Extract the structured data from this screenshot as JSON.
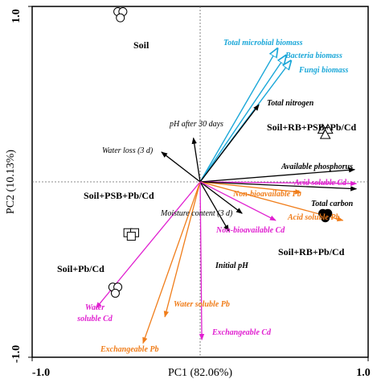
{
  "chart_data": {
    "type": "scatter",
    "subtype": "PCA biplot",
    "xlabel": "PC1 (82.06%)",
    "ylabel": "PC2 (10.13%)",
    "xlim": [
      -1.0,
      1.0
    ],
    "ylim": [
      -1.0,
      1.0
    ],
    "x_ticks": [
      "-1.0",
      "1.0"
    ],
    "y_ticks": [
      "1.0",
      "-1.0"
    ],
    "reference_lines": "dotted lines at x=0 and y=0",
    "vectors": [
      {
        "name": "Total microbial biomass",
        "x": 0.46,
        "y": 0.76,
        "color": "#1aa7d8",
        "style": "open-arrow"
      },
      {
        "name": "Bacteria biomass",
        "x": 0.51,
        "y": 0.72,
        "color": "#1aa7d8",
        "style": "open-arrow"
      },
      {
        "name": "Fungi biomass",
        "x": 0.54,
        "y": 0.69,
        "color": "#1aa7d8",
        "style": "open-arrow"
      },
      {
        "name": "Total nitrogen",
        "x": 0.35,
        "y": 0.44,
        "color": "#000000",
        "style": "arrow"
      },
      {
        "name": "pH after 30 days",
        "x": -0.04,
        "y": 0.25,
        "color": "#000000",
        "style": "arrow"
      },
      {
        "name": "Water loss (3 d)",
        "x": -0.23,
        "y": 0.17,
        "color": "#000000",
        "style": "arrow"
      },
      {
        "name": "Available phosphorus",
        "x": 0.92,
        "y": 0.07,
        "color": "#000000",
        "style": "arrow"
      },
      {
        "name": "Acid soluble Cd",
        "x": 0.93,
        "y": -0.01,
        "color": "#e020d0",
        "style": "arrow"
      },
      {
        "name": "Non-bioavailable Pb",
        "x": 0.6,
        "y": -0.06,
        "color": "#f07d1a",
        "style": "arrow"
      },
      {
        "name": "Total carbon",
        "x": 0.93,
        "y": -0.04,
        "color": "#000000",
        "style": "arrow"
      },
      {
        "name": "Acid soluble Pb",
        "x": 0.85,
        "y": -0.22,
        "color": "#f07d1a",
        "style": "arrow"
      },
      {
        "name": "Moisture content (3 d)",
        "x": 0.25,
        "y": -0.18,
        "color": "#000000",
        "style": "arrow"
      },
      {
        "name": "Non-bioavailable Cd",
        "x": 0.45,
        "y": -0.22,
        "color": "#e020d0",
        "style": "arrow"
      },
      {
        "name": "Initial pH",
        "x": 0.17,
        "y": -0.28,
        "color": "#000000",
        "style": "arrow"
      },
      {
        "name": "Water soluble Cd",
        "x": -0.62,
        "y": -0.72,
        "color": "#e020d0",
        "style": "arrow"
      },
      {
        "name": "Water soluble Pb",
        "x": -0.21,
        "y": -0.77,
        "color": "#f07d1a",
        "style": "arrow"
      },
      {
        "name": "Exchangeable Pb",
        "x": -0.34,
        "y": -0.92,
        "color": "#f07d1a",
        "style": "arrow"
      },
      {
        "name": "Exchangeable Cd",
        "x": 0.01,
        "y": -0.9,
        "color": "#e020d0",
        "style": "arrow"
      }
    ],
    "samples": [
      {
        "name": "Soil",
        "marker": "open-circle",
        "points": [
          [
            -0.49,
            0.97
          ],
          [
            -0.46,
            0.97
          ],
          [
            -0.475,
            0.935
          ]
        ]
      },
      {
        "name": "Soil+RB+PSB+Pb/Cd",
        "marker": "open-triangle",
        "points": [
          [
            0.73,
            0.3
          ],
          [
            0.76,
            0.3
          ],
          [
            0.745,
            0.27
          ]
        ]
      },
      {
        "name": "Soil+PSB+Pb/Cd",
        "marker": "open-square",
        "points": [
          [
            -0.43,
            -0.29
          ],
          [
            -0.39,
            -0.29
          ],
          [
            -0.41,
            -0.31
          ]
        ]
      },
      {
        "name": "Soil+RB+Pb/Cd",
        "marker": "filled-circle",
        "points": [
          [
            0.73,
            -0.18
          ],
          [
            0.76,
            -0.18
          ],
          [
            0.745,
            -0.205
          ]
        ]
      },
      {
        "name": "Soil+Pb/Cd",
        "marker": "open-circle",
        "points": [
          [
            -0.52,
            -0.6
          ],
          [
            -0.49,
            -0.6
          ],
          [
            -0.505,
            -0.635
          ]
        ]
      }
    ]
  }
}
